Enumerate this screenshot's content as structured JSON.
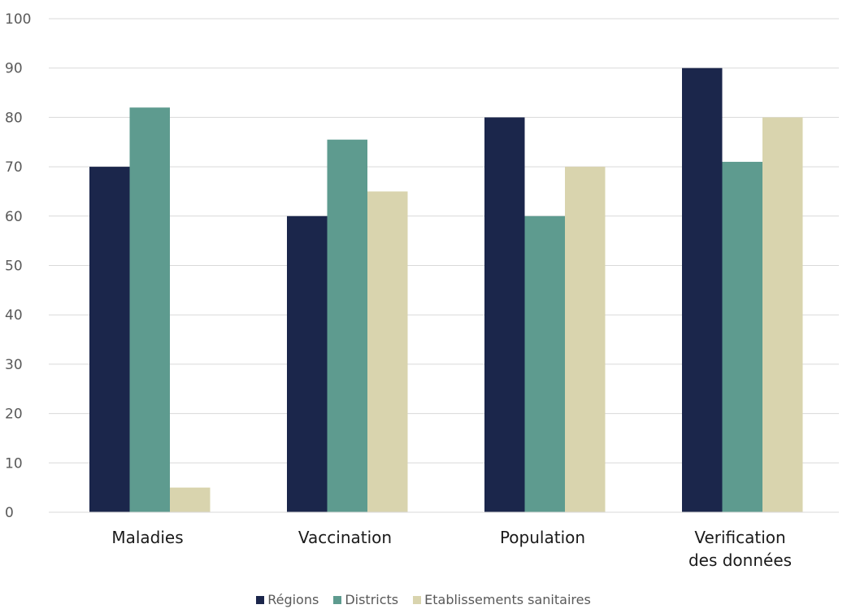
{
  "chart_data": {
    "type": "bar",
    "categories": [
      [
        "Maladies"
      ],
      [
        "Vaccination"
      ],
      [
        "Population"
      ],
      [
        "Verification",
        "des données"
      ]
    ],
    "series": [
      {
        "name": "Régions",
        "color": "#1b264b",
        "values": [
          70,
          60,
          80,
          90
        ]
      },
      {
        "name": "Districts",
        "color": "#5e9b8f",
        "values": [
          82,
          75.5,
          60,
          71
        ]
      },
      {
        "name": "Etablissements sanitaires",
        "color": "#d9d4ae",
        "values": [
          5,
          65,
          70,
          80
        ]
      }
    ],
    "ylim": [
      0,
      100
    ],
    "yticks": [
      "0",
      "10",
      "20",
      "30",
      "40",
      "50",
      "60",
      "70",
      "80",
      "90",
      "100"
    ],
    "grid": true,
    "legend_position": "bottom"
  }
}
